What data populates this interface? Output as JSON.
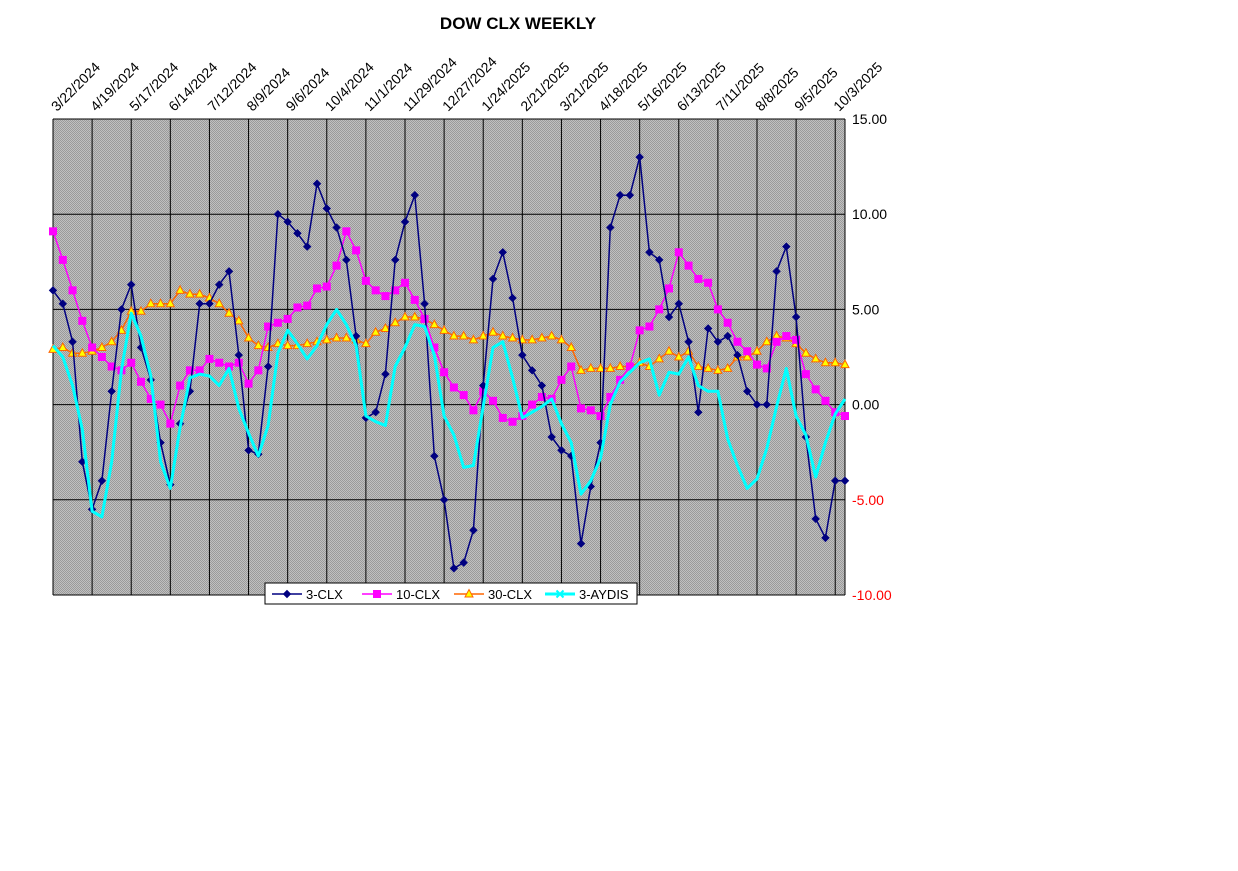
{
  "chart_data": {
    "type": "line",
    "title": "DOW CLX WEEKLY",
    "x_tick_labels": [
      "3/22/2024",
      "4/19/2024",
      "5/17/2024",
      "6/14/2024",
      "7/12/2024",
      "8/9/2024",
      "9/6/2024",
      "10/4/2024",
      "11/1/2024",
      "11/29/2024",
      "12/27/2024",
      "1/24/2025",
      "2/21/2025",
      "3/21/2025",
      "4/18/2025",
      "5/16/2025",
      "6/13/2025",
      "7/11/2025",
      "8/8/2025",
      "9/5/2025",
      "10/3/2025"
    ],
    "y_tick_labels": [
      "15.00",
      "10.00",
      "5.00",
      "0.00",
      "-5.00",
      "-10.00"
    ],
    "ylim": [
      -10,
      15
    ],
    "grid": true,
    "legend_position": "bottom-center",
    "series": [
      {
        "name": "3-CLX",
        "color": "#000080",
        "marker": "diamond",
        "values": [
          6.0,
          5.3,
          3.3,
          -3.0,
          -5.5,
          -4.0,
          0.7,
          5.0,
          6.3,
          3.0,
          1.3,
          -2.0,
          -4.2,
          -1.0,
          0.7,
          5.3,
          5.3,
          6.3,
          7.0,
          2.6,
          -2.4,
          -2.6,
          2.0,
          10.0,
          9.6,
          9.0,
          8.3,
          11.6,
          10.3,
          9.3,
          7.6,
          3.6,
          -0.7,
          -0.4,
          1.6,
          7.6,
          9.6,
          11.0,
          5.3,
          -2.7,
          -5.0,
          -8.6,
          -8.3,
          -6.6,
          1.0,
          6.6,
          8.0,
          5.6,
          2.6,
          1.8,
          1.0,
          -1.7,
          -2.4,
          -2.7,
          -7.3,
          -4.3,
          -2.0,
          9.3,
          11.0,
          11.0,
          13.0,
          8.0,
          7.6,
          4.6,
          5.3,
          3.3,
          -0.4,
          4.0,
          3.3,
          3.6,
          2.6,
          0.7,
          0.0,
          0.0,
          7.0,
          8.3,
          4.6,
          -1.7,
          -6.0,
          -7.0,
          -4.0,
          -4.0
        ]
      },
      {
        "name": "10-CLX",
        "color": "#FF00FF",
        "marker": "square",
        "values": [
          9.1,
          7.6,
          6.0,
          4.4,
          3.0,
          2.5,
          2.0,
          1.8,
          2.2,
          1.2,
          0.3,
          0.0,
          -1.0,
          1.0,
          1.8,
          1.8,
          2.4,
          2.2,
          2.0,
          2.2,
          1.1,
          1.8,
          4.1,
          4.3,
          4.5,
          5.1,
          5.2,
          6.1,
          6.2,
          7.3,
          9.1,
          8.1,
          6.5,
          6.0,
          5.7,
          6.0,
          6.4,
          5.5,
          4.5,
          3.0,
          1.7,
          0.9,
          0.5,
          -0.3,
          0.7,
          0.2,
          -0.7,
          -0.9,
          -0.6,
          0.0,
          0.4,
          0.3,
          1.3,
          2.0,
          -0.2,
          -0.3,
          -0.6,
          0.4,
          1.3,
          2.0,
          3.9,
          4.1,
          5.0,
          6.1,
          8.0,
          7.3,
          6.6,
          6.4,
          5.0,
          4.3,
          3.3,
          2.8,
          2.1,
          1.9,
          3.3,
          3.6,
          3.4,
          1.6,
          0.8,
          0.2,
          -0.4,
          -0.6
        ]
      },
      {
        "name": "30-CLX",
        "color": "#FF6600",
        "marker": "triangle",
        "values": [
          2.9,
          3.0,
          2.7,
          2.7,
          2.8,
          3.0,
          3.3,
          3.9,
          4.9,
          4.9,
          5.3,
          5.3,
          5.3,
          6.0,
          5.8,
          5.8,
          5.6,
          5.3,
          4.8,
          4.4,
          3.5,
          3.1,
          3.0,
          3.2,
          3.1,
          3.1,
          3.2,
          3.3,
          3.4,
          3.5,
          3.5,
          3.4,
          3.2,
          3.8,
          4.0,
          4.3,
          4.6,
          4.6,
          4.5,
          4.2,
          3.9,
          3.6,
          3.6,
          3.4,
          3.6,
          3.8,
          3.6,
          3.5,
          3.4,
          3.4,
          3.5,
          3.6,
          3.4,
          3.0,
          1.8,
          1.9,
          1.9,
          1.9,
          2.0,
          2.0,
          2.2,
          2.0,
          2.4,
          2.8,
          2.5,
          2.8,
          2.0,
          1.9,
          1.8,
          1.9,
          2.5,
          2.5,
          2.8,
          3.3,
          3.6,
          3.5,
          3.2,
          2.7,
          2.4,
          2.2,
          2.2,
          2.1
        ]
      },
      {
        "name": "3-AYDIS",
        "color": "#00FFFF",
        "marker": "cross",
        "values": [
          3.1,
          2.5,
          1.0,
          -1.3,
          -5.6,
          -5.9,
          -3.0,
          1.8,
          4.8,
          3.6,
          1.5,
          -3.0,
          -4.4,
          -1.2,
          1.4,
          1.6,
          1.5,
          1.0,
          1.9,
          -0.2,
          -1.5,
          -2.7,
          -1.1,
          2.7,
          3.9,
          3.2,
          2.4,
          3.1,
          4.2,
          5.0,
          4.2,
          3.1,
          -0.6,
          -0.9,
          -1.1,
          2.0,
          3.0,
          4.2,
          4.1,
          2.6,
          -0.6,
          -1.6,
          -3.3,
          -3.2,
          -0.1,
          3.0,
          3.3,
          1.4,
          -0.7,
          -0.4,
          -0.1,
          0.3,
          -1.0,
          -2.0,
          -4.7,
          -4.0,
          -2.8,
          0.0,
          1.2,
          1.7,
          2.2,
          2.4,
          0.5,
          1.7,
          1.6,
          2.5,
          1.0,
          0.7,
          0.7,
          -1.8,
          -3.2,
          -4.4,
          -3.9,
          -2.3,
          -0.1,
          1.9,
          -0.6,
          -1.6,
          -3.8,
          -2.0,
          -0.5,
          0.3
        ]
      }
    ]
  }
}
